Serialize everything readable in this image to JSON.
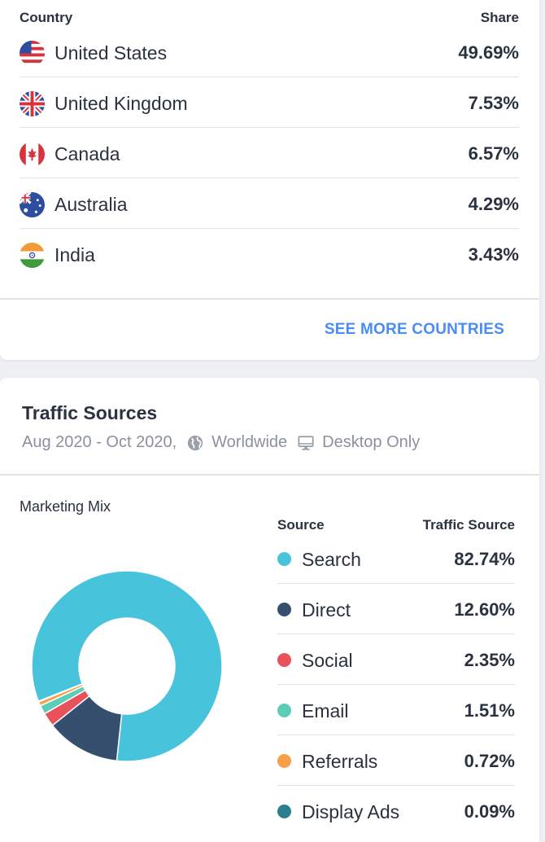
{
  "countries": {
    "header_country": "Country",
    "header_share": "Share",
    "rows": [
      {
        "name": "United States",
        "share": "49.69%",
        "flag": "us-flag-icon"
      },
      {
        "name": "United Kingdom",
        "share": "7.53%",
        "flag": "uk-flag-icon"
      },
      {
        "name": "Canada",
        "share": "6.57%",
        "flag": "canada-flag-icon"
      },
      {
        "name": "Australia",
        "share": "4.29%",
        "flag": "australia-flag-icon"
      },
      {
        "name": "India",
        "share": "3.43%",
        "flag": "india-flag-icon"
      }
    ],
    "see_more": "SEE MORE COUNTRIES"
  },
  "traffic": {
    "title": "Traffic Sources",
    "date_range": "Aug 2020 - Oct 2020,",
    "region": "Worldwide",
    "device": "Desktop Only",
    "region_icon": "globe-icon",
    "device_icon": "desktop-icon",
    "mix_title": "Marketing Mix",
    "header_source": "Source",
    "header_traffic": "Traffic Source",
    "sources": [
      {
        "name": "Search",
        "value": "82.74%",
        "color": "#47c4dc"
      },
      {
        "name": "Direct",
        "value": "12.60%",
        "color": "#364f6e"
      },
      {
        "name": "Social",
        "value": "2.35%",
        "color": "#e8525a"
      },
      {
        "name": "Email",
        "value": "1.51%",
        "color": "#5ccdb8"
      },
      {
        "name": "Referrals",
        "value": "0.72%",
        "color": "#f6a049"
      },
      {
        "name": "Display Ads",
        "value": "0.09%",
        "color": "#2b7e8e"
      }
    ]
  },
  "chart_data": {
    "type": "pie",
    "title": "Marketing Mix",
    "categories": [
      "Search",
      "Direct",
      "Social",
      "Email",
      "Referrals",
      "Display Ads"
    ],
    "values": [
      82.74,
      12.6,
      2.35,
      1.51,
      0.72,
      0.09
    ],
    "colors": [
      "#47c4dc",
      "#364f6e",
      "#e8525a",
      "#5ccdb8",
      "#f6a049",
      "#2b7e8e"
    ],
    "donut": true
  }
}
